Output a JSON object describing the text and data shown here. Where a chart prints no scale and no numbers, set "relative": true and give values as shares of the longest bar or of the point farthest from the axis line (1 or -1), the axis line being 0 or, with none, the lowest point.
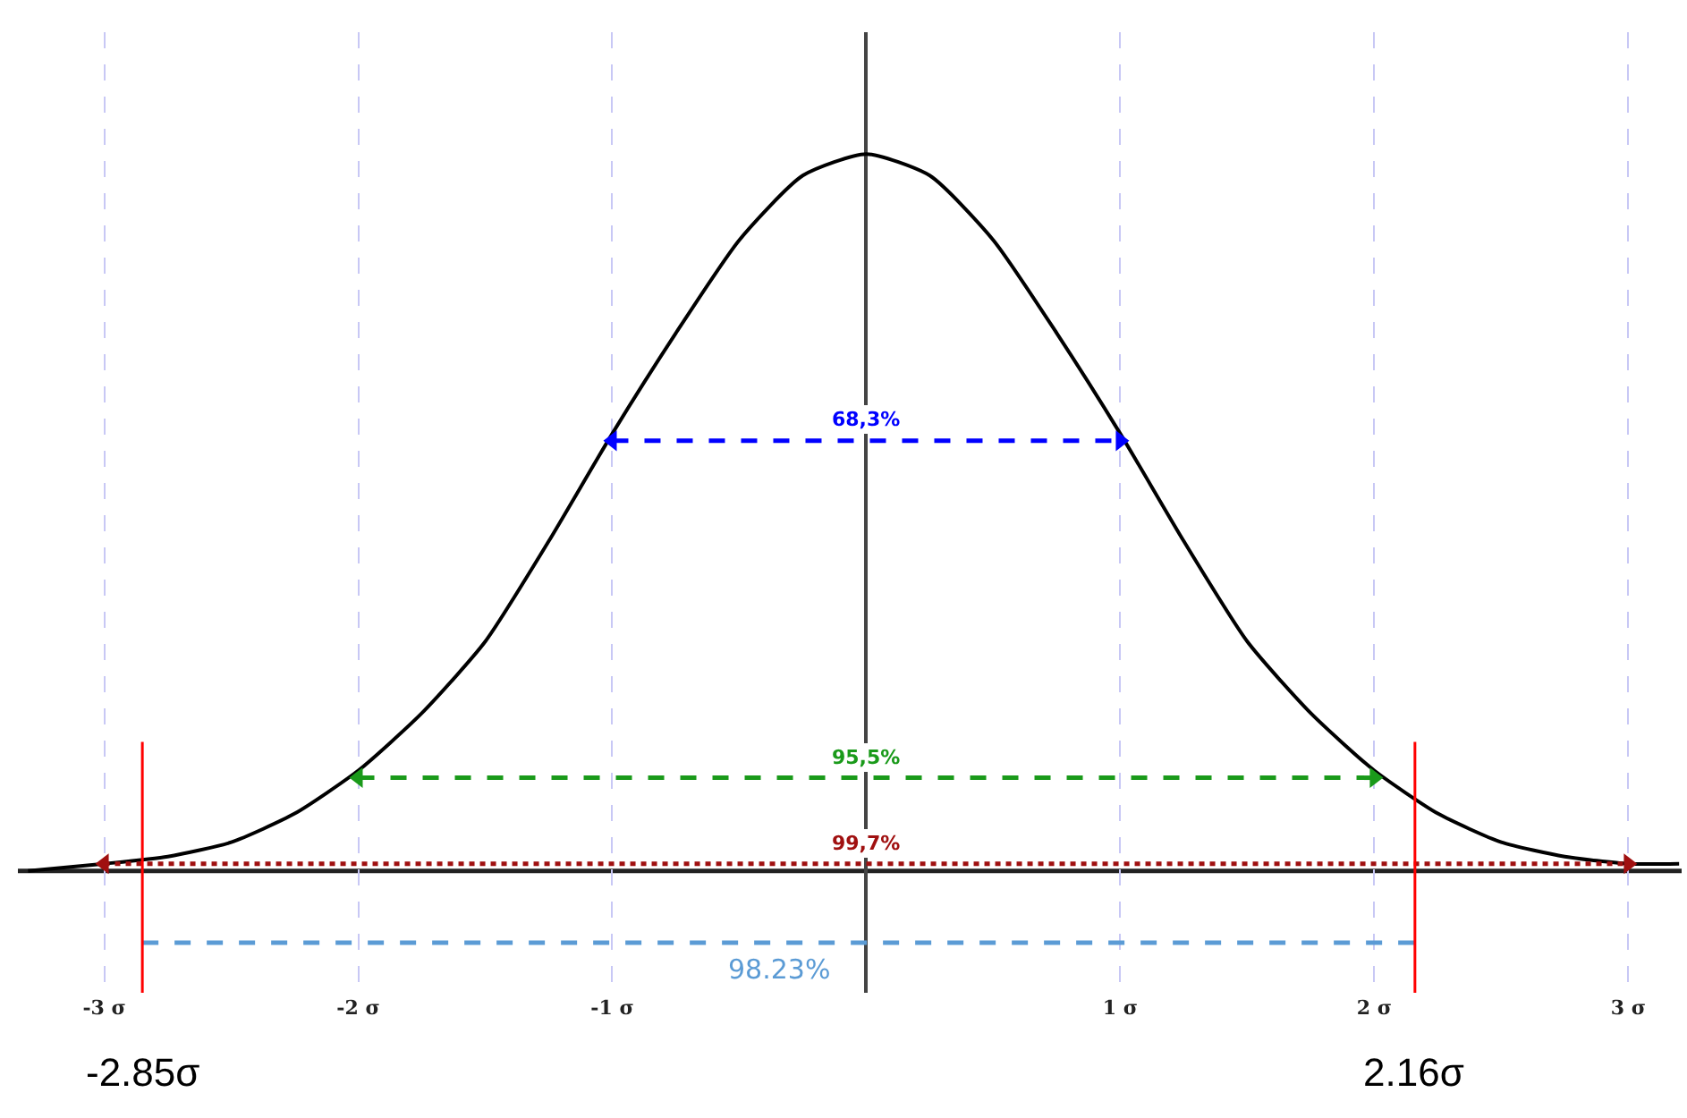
{
  "chart_data": {
    "type": "line",
    "relative": true,
    "grid": "x",
    "legend": false,
    "marker": "none",
    "xlim": [
      -3.34,
      3.21
    ],
    "xticks": [
      {
        "value": -3,
        "label": "-3 σ"
      },
      {
        "value": -2,
        "label": "-2 σ"
      },
      {
        "value": -1,
        "label": "-1 σ"
      },
      {
        "value": 1,
        "label": "1 σ"
      },
      {
        "value": 2,
        "label": "2 σ"
      },
      {
        "value": 3,
        "label": "3 σ"
      }
    ],
    "series": [
      {
        "color": "#000000",
        "x": [
          -3.3,
          -3,
          -2.75,
          -2.5,
          -2.25,
          -2,
          -1.75,
          -1.5,
          -1.25,
          -1,
          -0.75,
          -0.5,
          -0.25,
          0,
          0.25,
          0.5,
          0.75,
          1,
          1.25,
          1.5,
          1.75,
          2,
          2.25,
          2.5,
          2.75,
          3,
          3.2
        ],
        "values": [
          0.0,
          0.01,
          0.02,
          0.04,
          0.08,
          0.14,
          0.22,
          0.32,
          0.46,
          0.61,
          0.75,
          0.88,
          0.97,
          1,
          0.97,
          0.88,
          0.75,
          0.61,
          0.46,
          0.32,
          0.22,
          0.14,
          0.08,
          0.04,
          0.02,
          0.01,
          0.01
        ]
      },
      {
        "name": "68,3%",
        "color": "#0000ff",
        "x": [
          -1,
          1
        ],
        "values": [
          0.6,
          0.6
        ],
        "line_style": "dashed",
        "marker": "triangle"
      },
      {
        "name": "95,5%",
        "color": "#1a9a1a",
        "x": [
          -2,
          2
        ],
        "values": [
          0.13,
          0.13
        ],
        "line_style": "dashed",
        "marker": "triangle"
      },
      {
        "name": "99,7%",
        "color": "#a01010",
        "x": [
          -3,
          3
        ],
        "values": [
          0.01,
          0.01
        ],
        "line_style": "dotted",
        "marker": "triangle"
      },
      {
        "name": "98.23%",
        "color": "#5b9bd5",
        "x": [
          -2.85,
          2.16
        ],
        "values": [
          -0.1,
          -0.1
        ],
        "line_style": "dashed"
      }
    ],
    "ref_lines": [
      {
        "axis": "x",
        "value": -2.85,
        "label": "-2.85σ",
        "color": "#ff0000"
      },
      {
        "axis": "x",
        "value": 2.16,
        "label": "2.16σ",
        "color": "#ff0000"
      }
    ]
  }
}
